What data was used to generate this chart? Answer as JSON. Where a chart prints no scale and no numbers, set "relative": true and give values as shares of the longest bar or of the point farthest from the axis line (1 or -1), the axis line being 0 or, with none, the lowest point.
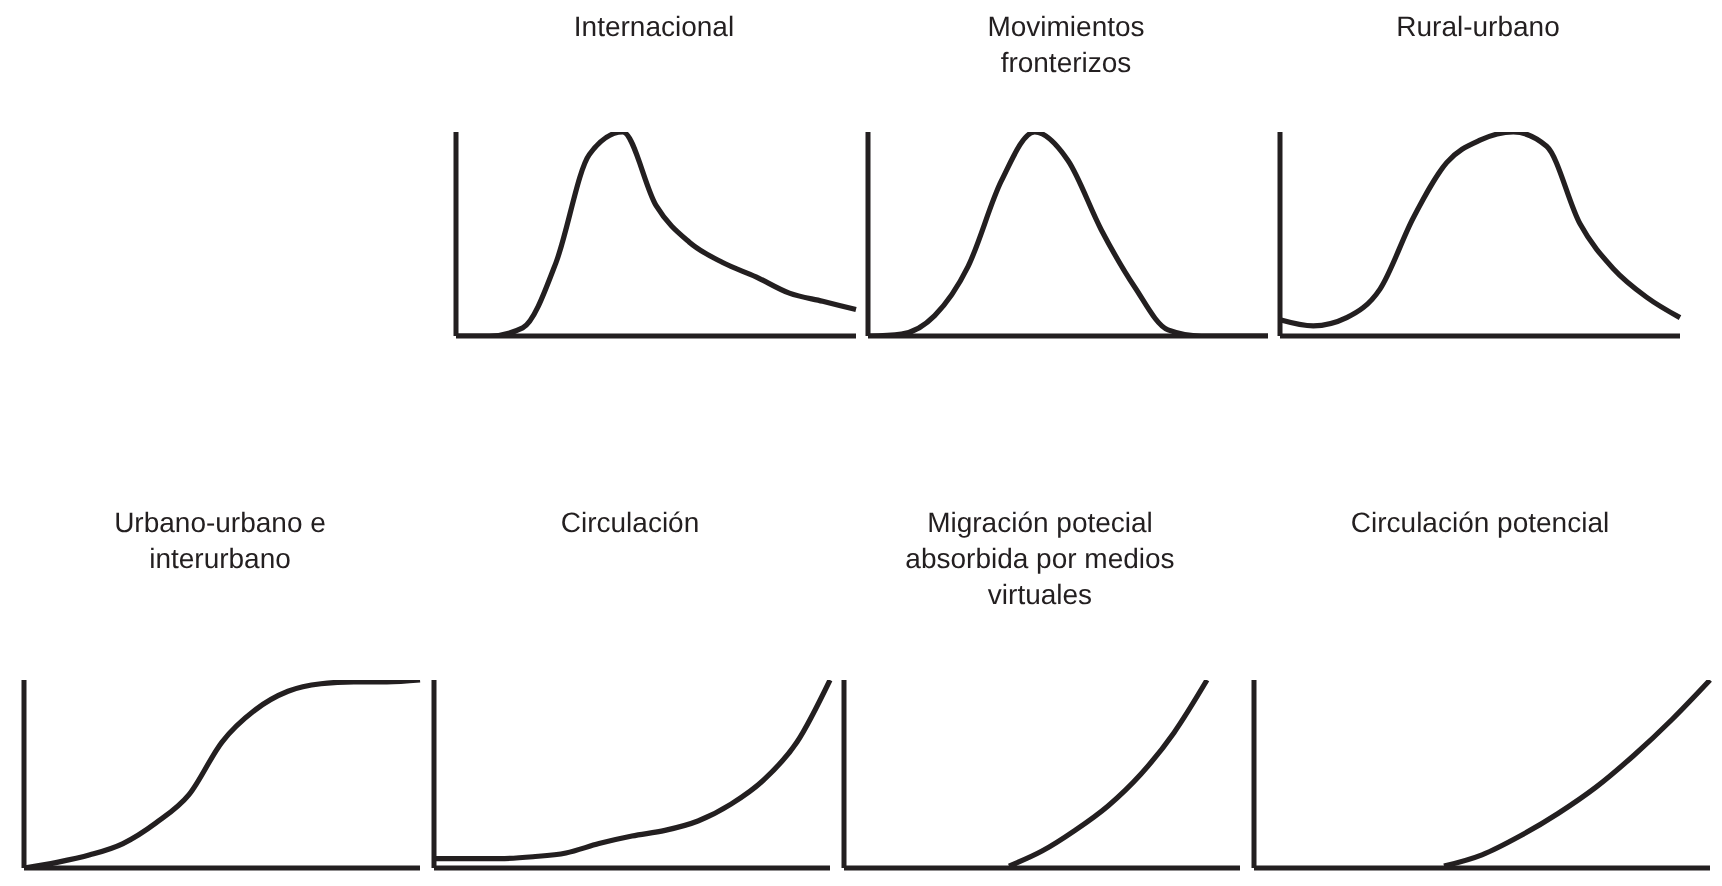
{
  "chart_data": [
    {
      "type": "line",
      "title": "Internacional",
      "relative": true,
      "color": "#231f20",
      "categories": [
        null,
        null,
        null,
        null,
        null,
        null,
        null,
        null,
        null,
        null,
        null,
        null,
        null
      ],
      "values": [
        0,
        0,
        0.04,
        0.36,
        0.89,
        1,
        0.64,
        0.46,
        0.36,
        0.29,
        0.21,
        0.17,
        0.13
      ]
    },
    {
      "type": "line",
      "title": "Movimientos fronterizos",
      "relative": true,
      "color": "#231f20",
      "categories": [
        null,
        null,
        null,
        null,
        null,
        null,
        null,
        null,
        null,
        null,
        null,
        null,
        null
      ],
      "values": [
        0,
        0.01,
        0.1,
        0.34,
        0.76,
        1,
        0.86,
        0.52,
        0.24,
        0.03,
        0,
        0,
        0
      ]
    },
    {
      "type": "line",
      "title": "Rural-urbano",
      "relative": true,
      "color": "#231f20",
      "categories": [
        null,
        null,
        null,
        null,
        null,
        null,
        null,
        null,
        null,
        null,
        null,
        null,
        null
      ],
      "values": [
        0.08,
        0.05,
        0.09,
        0.23,
        0.58,
        0.85,
        0.96,
        1,
        0.93,
        0.55,
        0.33,
        0.19,
        0.09
      ]
    },
    {
      "type": "line",
      "title": "Urbano-urbano e interurbano",
      "relative": true,
      "color": "#231f20",
      "categories": [
        null,
        null,
        null,
        null,
        null,
        null,
        null,
        null,
        null,
        null,
        null,
        null,
        null
      ],
      "values": [
        0,
        0.03,
        0.07,
        0.13,
        0.24,
        0.39,
        0.67,
        0.84,
        0.94,
        0.98,
        0.99,
        0.99,
        1
      ]
    },
    {
      "type": "line",
      "title": "Circulación",
      "relative": true,
      "color": "#231f20",
      "categories": [
        null,
        null,
        null,
        null,
        null,
        null,
        null,
        null,
        null,
        null,
        null,
        null,
        null
      ],
      "values": [
        0.05,
        0.05,
        0.05,
        0.06,
        0.08,
        0.13,
        0.17,
        0.2,
        0.25,
        0.34,
        0.47,
        0.67,
        1
      ]
    },
    {
      "type": "line",
      "title": "Migración potecial absorbida por medios virtuales",
      "relative": true,
      "color": "#231f20",
      "categories": [
        null,
        null,
        null,
        null,
        null,
        null,
        null,
        null,
        null,
        null,
        null,
        null,
        null
      ],
      "values": [
        null,
        null,
        null,
        null,
        null,
        0.01,
        0.09,
        0.2,
        0.33,
        0.5,
        0.72,
        1,
        null
      ]
    },
    {
      "type": "line",
      "title": "Circulación potencial",
      "relative": true,
      "color": "#231f20",
      "categories": [
        null,
        null,
        null,
        null,
        null,
        null,
        null,
        null,
        null,
        null,
        null,
        null,
        null
      ],
      "values": [
        null,
        null,
        null,
        null,
        null,
        0.01,
        0.07,
        0.17,
        0.29,
        0.43,
        0.6,
        0.79,
        1
      ]
    }
  ]
}
